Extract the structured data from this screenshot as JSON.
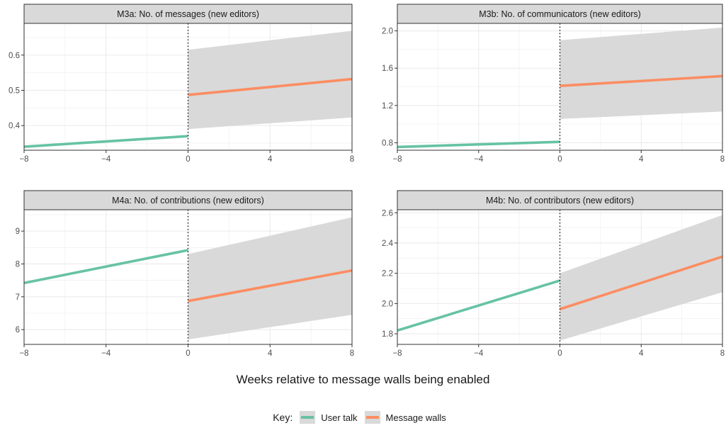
{
  "chart_data": [
    {
      "type": "line",
      "title": "M3a: No. of messages (new editors)",
      "xlim": [
        -8,
        8
      ],
      "ylim": [
        0.33,
        0.69
      ],
      "xticks": [
        -8,
        -4,
        0,
        4,
        8
      ],
      "xtick_labels": [
        "−8",
        "−4",
        "0",
        "4",
        "8"
      ],
      "yticks": [
        0.4,
        0.5,
        0.6
      ],
      "ytick_labels": [
        "0.4",
        "0.5",
        "0.6"
      ],
      "vline_x": 0,
      "series": [
        {
          "name": "User talk",
          "color": "#66c2a5",
          "x": [
            -8,
            0
          ],
          "y": [
            0.34,
            0.37
          ]
        },
        {
          "name": "Message walls",
          "color": "#fc8d62",
          "x": [
            0,
            8
          ],
          "y": [
            0.487,
            0.532
          ],
          "ci_lower": [
            0.39,
            0.423
          ],
          "ci_upper": [
            0.615,
            0.669
          ]
        }
      ]
    },
    {
      "type": "line",
      "title": "M3b: No. of communicators (new editors)",
      "xlim": [
        -8,
        8
      ],
      "ylim": [
        0.72,
        2.08
      ],
      "xticks": [
        -8,
        -4,
        0,
        4,
        8
      ],
      "xtick_labels": [
        "−8",
        "−4",
        "0",
        "4",
        "8"
      ],
      "yticks": [
        0.8,
        1.2,
        1.6,
        2.0
      ],
      "ytick_labels": [
        "0.8",
        "1.2",
        "1.6",
        "2.0"
      ],
      "vline_x": 0,
      "series": [
        {
          "name": "User talk",
          "color": "#66c2a5",
          "x": [
            -8,
            0
          ],
          "y": [
            0.755,
            0.81
          ]
        },
        {
          "name": "Message walls",
          "color": "#fc8d62",
          "x": [
            0,
            8
          ],
          "y": [
            1.41,
            1.515
          ],
          "ci_lower": [
            1.055,
            1.135
          ],
          "ci_upper": [
            1.9,
            2.035
          ]
        }
      ]
    },
    {
      "type": "line",
      "title": "M4a: No. of contributions (new editors)",
      "xlim": [
        -8,
        8
      ],
      "ylim": [
        5.55,
        9.65
      ],
      "xticks": [
        -8,
        -4,
        0,
        4,
        8
      ],
      "xtick_labels": [
        "−8",
        "−4",
        "0",
        "4",
        "8"
      ],
      "yticks": [
        6,
        7,
        8,
        9
      ],
      "ytick_labels": [
        "6",
        "7",
        "8",
        "9"
      ],
      "vline_x": 0,
      "series": [
        {
          "name": "User talk",
          "color": "#66c2a5",
          "x": [
            -8,
            0
          ],
          "y": [
            7.42,
            8.42
          ]
        },
        {
          "name": "Message walls",
          "color": "#fc8d62",
          "x": [
            0,
            8
          ],
          "y": [
            6.87,
            7.8
          ],
          "ci_lower": [
            5.7,
            6.45
          ],
          "ci_upper": [
            8.3,
            9.42
          ]
        }
      ]
    },
    {
      "type": "line",
      "title": "M4b: No. of contributors (new editors)",
      "xlim": [
        -8,
        8
      ],
      "ylim": [
        1.73,
        2.62
      ],
      "xticks": [
        -8,
        -4,
        0,
        4,
        8
      ],
      "xtick_labels": [
        "−8",
        "−4",
        "0",
        "4",
        "8"
      ],
      "yticks": [
        1.8,
        2.0,
        2.2,
        2.4,
        2.6
      ],
      "ytick_labels": [
        "1.8",
        "2.0",
        "2.2",
        "2.4",
        "2.6"
      ],
      "vline_x": 0,
      "series": [
        {
          "name": "User talk",
          "color": "#66c2a5",
          "x": [
            -8,
            0
          ],
          "y": [
            1.822,
            2.152
          ]
        },
        {
          "name": "Message walls",
          "color": "#fc8d62",
          "x": [
            0,
            8
          ],
          "y": [
            1.963,
            2.31
          ],
          "ci_lower": [
            1.755,
            2.075
          ],
          "ci_upper": [
            2.2,
            2.585
          ]
        }
      ]
    }
  ],
  "xlabel": "Weeks relative to message walls being enabled",
  "legend": {
    "title": "Key:",
    "items": [
      {
        "label": "User talk",
        "color": "#66c2a5"
      },
      {
        "label": "Message walls",
        "color": "#fc8d62"
      }
    ]
  }
}
